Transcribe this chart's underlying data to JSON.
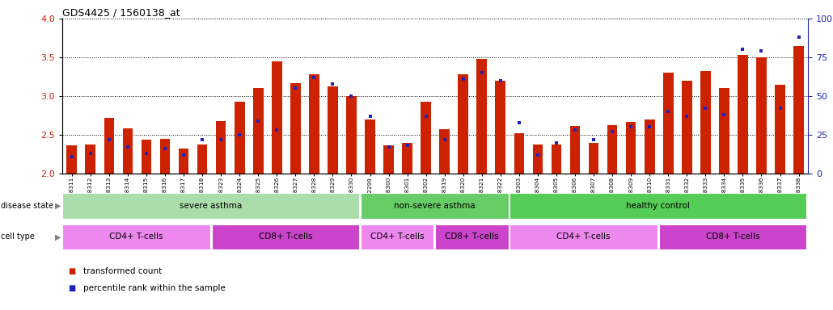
{
  "title": "GDS4425 / 1560138_at",
  "samples": [
    "GSM788311",
    "GSM788312",
    "GSM788313",
    "GSM788314",
    "GSM788315",
    "GSM788316",
    "GSM788317",
    "GSM788318",
    "GSM788323",
    "GSM788324",
    "GSM788325",
    "GSM788326",
    "GSM788327",
    "GSM788328",
    "GSM788329",
    "GSM788330",
    "GSM7882299",
    "GSM788300",
    "GSM788301",
    "GSM788302",
    "GSM788319",
    "GSM788320",
    "GSM788321",
    "GSM788322",
    "GSM788303",
    "GSM788304",
    "GSM788305",
    "GSM788306",
    "GSM788307",
    "GSM788308",
    "GSM788309",
    "GSM788310",
    "GSM788331",
    "GSM788332",
    "GSM788333",
    "GSM788334",
    "GSM788335",
    "GSM788336",
    "GSM788337",
    "GSM788338"
  ],
  "transformed_count": [
    2.37,
    2.38,
    2.72,
    2.58,
    2.44,
    2.45,
    2.32,
    2.38,
    2.68,
    2.93,
    3.1,
    3.45,
    3.17,
    3.28,
    3.13,
    3.0,
    2.7,
    2.37,
    2.4,
    2.93,
    2.57,
    3.28,
    3.48,
    3.2,
    2.52,
    2.38,
    2.38,
    2.62,
    2.4,
    2.63,
    2.67,
    2.7,
    3.3,
    3.2,
    3.32,
    3.1,
    3.53,
    3.5,
    3.15,
    3.65
  ],
  "percentile_rank": [
    11,
    13,
    22,
    17,
    13,
    16,
    12,
    22,
    22,
    25,
    34,
    28,
    55,
    62,
    58,
    50,
    37,
    17,
    18,
    37,
    22,
    61,
    65,
    60,
    33,
    12,
    20,
    28,
    22,
    27,
    30,
    30,
    40,
    37,
    42,
    38,
    80,
    79,
    42,
    88
  ],
  "ylim": [
    2.0,
    4.0
  ],
  "yticks": [
    2.0,
    2.5,
    3.0,
    3.5,
    4.0
  ],
  "right_ylim": [
    0,
    100
  ],
  "right_yticks": [
    0,
    25,
    50,
    75,
    100
  ],
  "bar_color": "#CC2200",
  "blue_color": "#2222BB",
  "disease_state_groups": [
    {
      "label": "severe asthma",
      "start": 0,
      "end": 15,
      "color": "#AADDAA"
    },
    {
      "label": "non-severe asthma",
      "start": 16,
      "end": 23,
      "color": "#66CC66"
    },
    {
      "label": "healthy control",
      "start": 24,
      "end": 39,
      "color": "#55CC55"
    }
  ],
  "cell_type_groups": [
    {
      "label": "CD4+ T-cells",
      "start": 0,
      "end": 7,
      "color": "#EE88EE"
    },
    {
      "label": "CD8+ T-cells",
      "start": 8,
      "end": 15,
      "color": "#CC44CC"
    },
    {
      "label": "CD4+ T-cells",
      "start": 16,
      "end": 19,
      "color": "#EE88EE"
    },
    {
      "label": "CD8+ T-cells",
      "start": 20,
      "end": 23,
      "color": "#CC44CC"
    },
    {
      "label": "CD4+ T-cells",
      "start": 24,
      "end": 31,
      "color": "#EE88EE"
    },
    {
      "label": "CD8+ T-cells",
      "start": 32,
      "end": 39,
      "color": "#CC44CC"
    }
  ],
  "legend_items": [
    {
      "label": "transformed count",
      "color": "#CC2200"
    },
    {
      "label": "percentile rank within the sample",
      "color": "#2222BB"
    }
  ],
  "background_color": "#ffffff",
  "left_label_color": "#CC2200",
  "right_label_color": "#2222BB"
}
